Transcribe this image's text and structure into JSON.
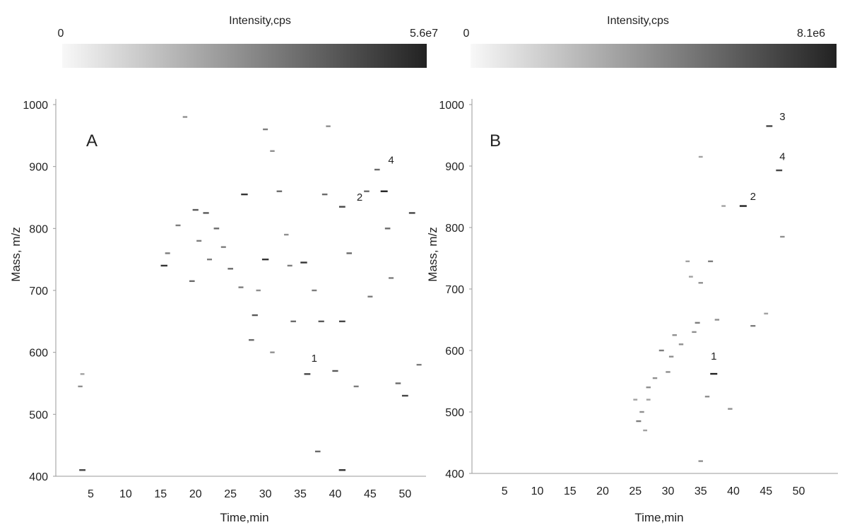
{
  "chart_data": [
    {
      "type": "heatmap",
      "panel_label": "A",
      "colorbar": {
        "title": "Intensity,cps",
        "min_label": "0",
        "max_label": "5.6e7",
        "color_low": "#f8f8f8",
        "color_high": "#222222"
      },
      "xlabel": "Time,min",
      "ylabel": "Mass, m/z",
      "xlim": [
        0,
        53
      ],
      "ylim": [
        400,
        1000
      ],
      "xticks": [
        "5",
        "10",
        "15",
        "20",
        "25",
        "30",
        "35",
        "40",
        "45",
        "50"
      ],
      "yticks": [
        "400",
        "500",
        "600",
        "700",
        "800",
        "900",
        "1000"
      ],
      "annotations": [
        {
          "text": "1",
          "x": 37,
          "y": 585
        },
        {
          "text": "2",
          "x": 43.5,
          "y": 845
        },
        {
          "text": "4",
          "x": 48,
          "y": 905
        }
      ],
      "points": [
        [
          3.8,
          410,
          0.8
        ],
        [
          3.5,
          545,
          0.4
        ],
        [
          3.8,
          565,
          0.3
        ],
        [
          15.5,
          740,
          0.9
        ],
        [
          16,
          760,
          0.5
        ],
        [
          17.5,
          805,
          0.5
        ],
        [
          18.5,
          980,
          0.4
        ],
        [
          19.5,
          715,
          0.6
        ],
        [
          20,
          830,
          0.7
        ],
        [
          20.5,
          780,
          0.5
        ],
        [
          21.5,
          825,
          0.7
        ],
        [
          22,
          750,
          0.5
        ],
        [
          23,
          800,
          0.6
        ],
        [
          24,
          770,
          0.5
        ],
        [
          25,
          735,
          0.6
        ],
        [
          26.5,
          705,
          0.5
        ],
        [
          27,
          855,
          0.9
        ],
        [
          28.5,
          660,
          0.7
        ],
        [
          30,
          750,
          0.9
        ],
        [
          30,
          960,
          0.5
        ],
        [
          31,
          925,
          0.4
        ],
        [
          32,
          860,
          0.6
        ],
        [
          33.5,
          740,
          0.5
        ],
        [
          34,
          650,
          0.6
        ],
        [
          35.5,
          745,
          0.9
        ],
        [
          36,
          565,
          0.8
        ],
        [
          37,
          700,
          0.5
        ],
        [
          38,
          650,
          0.7
        ],
        [
          38.5,
          855,
          0.6
        ],
        [
          39,
          965,
          0.4
        ],
        [
          40,
          570,
          0.7
        ],
        [
          41,
          650,
          0.8
        ],
        [
          41,
          835,
          0.8
        ],
        [
          41,
          410,
          0.9
        ],
        [
          42,
          760,
          0.6
        ],
        [
          43,
          545,
          0.5
        ],
        [
          45,
          690,
          0.5
        ],
        [
          46,
          895,
          0.6
        ],
        [
          47,
          860,
          1.0
        ],
        [
          47.5,
          800,
          0.6
        ],
        [
          48,
          720,
          0.5
        ],
        [
          49,
          550,
          0.6
        ],
        [
          50,
          530,
          0.8
        ],
        [
          51,
          825,
          0.8
        ],
        [
          52,
          580,
          0.5
        ],
        [
          44.5,
          860,
          0.6
        ],
        [
          37.5,
          440,
          0.6
        ],
        [
          33,
          790,
          0.4
        ],
        [
          28,
          620,
          0.6
        ],
        [
          29,
          700,
          0.4
        ],
        [
          31,
          600,
          0.4
        ]
      ]
    },
    {
      "type": "heatmap",
      "panel_label": "B",
      "colorbar": {
        "title": "Intensity,cps",
        "min_label": "0",
        "max_label": "8.1e6",
        "color_low": "#f8f8f8",
        "color_high": "#222222"
      },
      "xlabel": "Time,min",
      "ylabel": "Mass, m/z",
      "xlim": [
        0,
        56
      ],
      "ylim": [
        400,
        1000
      ],
      "xticks": [
        "5",
        "10",
        "15",
        "20",
        "25",
        "30",
        "35",
        "40",
        "45",
        "50"
      ],
      "yticks": [
        "400",
        "500",
        "600",
        "700",
        "800",
        "900",
        "1000"
      ],
      "annotations": [
        {
          "text": "1",
          "x": 37,
          "y": 585
        },
        {
          "text": "2",
          "x": 43,
          "y": 845
        },
        {
          "text": "3",
          "x": 47.5,
          "y": 975
        },
        {
          "text": "4",
          "x": 47.5,
          "y": 910
        }
      ],
      "points": [
        [
          37,
          562,
          1.0
        ],
        [
          41.5,
          835,
          1.0
        ],
        [
          45.5,
          965,
          0.8
        ],
        [
          47,
          893,
          0.8
        ],
        [
          47.5,
          785,
          0.4
        ],
        [
          43,
          640,
          0.5
        ],
        [
          45,
          660,
          0.3
        ],
        [
          37.5,
          650,
          0.4
        ],
        [
          36.5,
          745,
          0.5
        ],
        [
          35,
          710,
          0.4
        ],
        [
          35,
          915,
          0.3
        ],
        [
          35,
          420,
          0.4
        ],
        [
          39.5,
          505,
          0.4
        ],
        [
          36,
          525,
          0.4
        ],
        [
          34.5,
          645,
          0.5
        ],
        [
          34,
          630,
          0.4
        ],
        [
          33.5,
          720,
          0.3
        ],
        [
          32,
          610,
          0.4
        ],
        [
          31,
          625,
          0.4
        ],
        [
          30.5,
          590,
          0.4
        ],
        [
          29,
          600,
          0.5
        ],
        [
          30,
          565,
          0.4
        ],
        [
          28,
          555,
          0.4
        ],
        [
          27,
          540,
          0.4
        ],
        [
          27,
          520,
          0.3
        ],
        [
          26,
          500,
          0.4
        ],
        [
          25.5,
          485,
          0.5
        ],
        [
          25,
          520,
          0.3
        ],
        [
          26.5,
          470,
          0.3
        ],
        [
          38.5,
          835,
          0.3
        ],
        [
          33,
          745,
          0.3
        ]
      ]
    }
  ]
}
